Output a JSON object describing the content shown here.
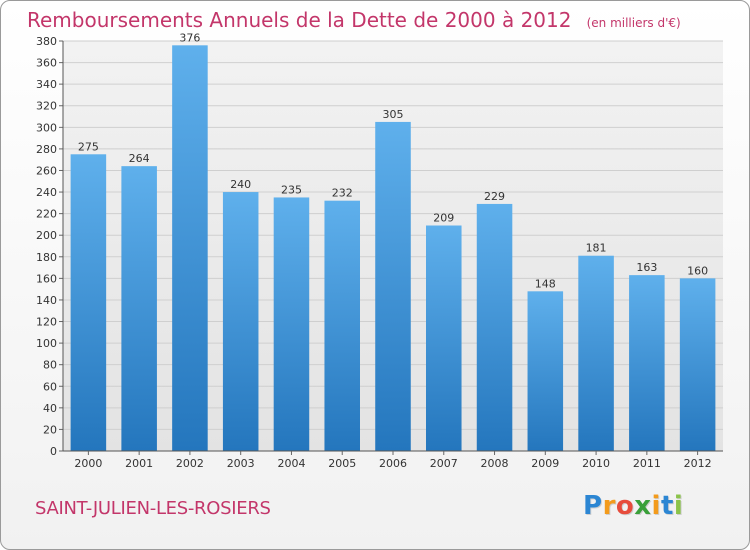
{
  "title": "Remboursements Annuels de la Dette de 2000 à 2012",
  "unit": "(en milliers d'€)",
  "commune": "SAINT-JULIEN-LES-ROSIERS",
  "brand": {
    "letters": [
      "P",
      "r",
      "o",
      "x",
      "i",
      "t",
      "i"
    ],
    "colors": [
      "#2c86d3",
      "#f39b1c",
      "#e74c3c",
      "#3aa03a",
      "#f39b1c",
      "#2c86d3",
      "#8bc34a"
    ]
  },
  "chart_data": {
    "type": "bar",
    "title": "Remboursements Annuels de la Dette de 2000 à 2012",
    "xlabel": "",
    "ylabel": "",
    "categories": [
      "2000",
      "2001",
      "2002",
      "2003",
      "2004",
      "2005",
      "2006",
      "2007",
      "2008",
      "2009",
      "2010",
      "2011",
      "2012"
    ],
    "values": [
      275,
      264,
      376,
      240,
      235,
      232,
      305,
      209,
      229,
      148,
      181,
      163,
      160
    ],
    "data_labels": [
      "275",
      "264",
      "376",
      "240",
      "235",
      "232",
      "305",
      "209",
      "229",
      "148",
      "181",
      "163",
      "160"
    ],
    "ylim": [
      0,
      380
    ],
    "yticks": [
      0,
      20,
      40,
      60,
      80,
      100,
      120,
      140,
      160,
      180,
      200,
      220,
      240,
      260,
      280,
      300,
      320,
      340,
      360,
      380
    ],
    "grid": true,
    "bar_color": "#4a9fe0"
  }
}
